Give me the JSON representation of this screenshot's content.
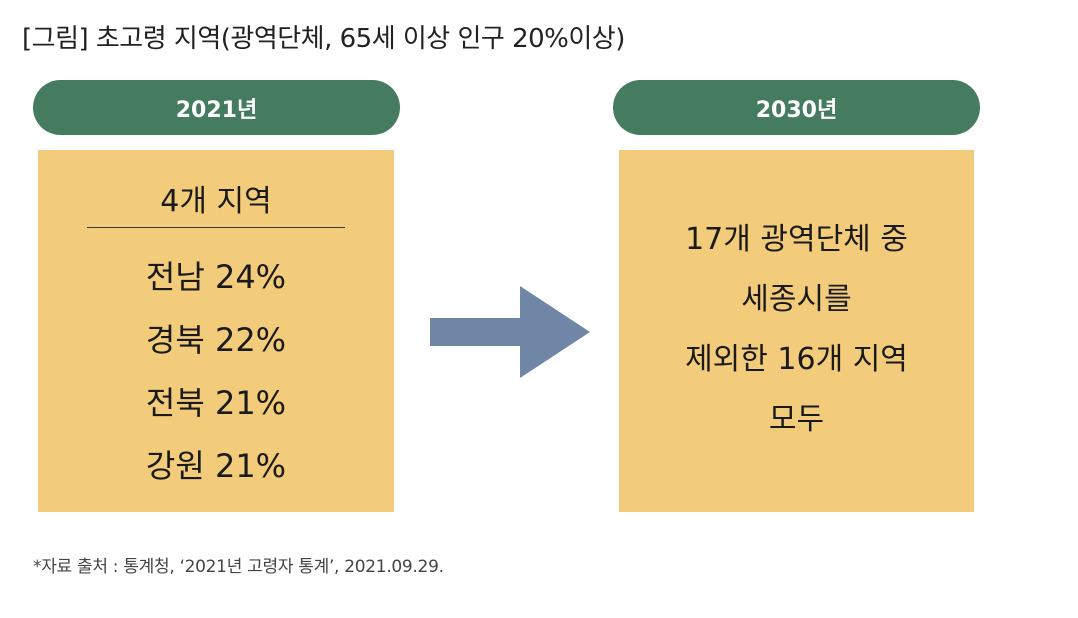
{
  "title": "[그림] 초고령 지역(광역단체, 65세 이상 인구 20%이상)",
  "left_panel": {
    "year_label": "2021년",
    "header": "4개 지역",
    "regions": [
      "전남 24%",
      "경북 22%",
      "전북 21%",
      "강원 21%"
    ]
  },
  "right_panel": {
    "year_label": "2030년",
    "lines": [
      "17개 광역단체 중",
      "세종시를",
      "제외한 16개 지역",
      "모두"
    ]
  },
  "arrow": {
    "icon": "right-arrow-icon",
    "color": "#6f86a6"
  },
  "colors": {
    "pill": "#457b5e",
    "box": "#f2cb7b"
  },
  "footnote": "*자료  출처 : 통계청, ‘2021년 고령자 통계’, 2021.09.29."
}
